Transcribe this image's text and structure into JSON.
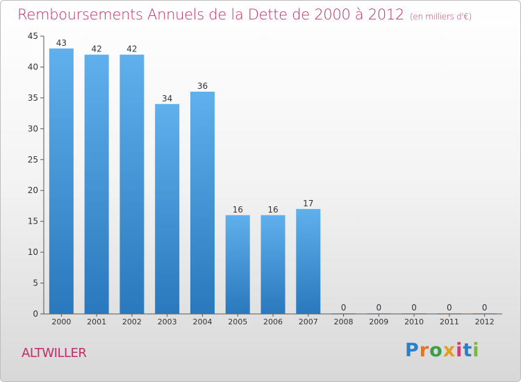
{
  "header": {
    "title": "Remboursements Annuels de la Dette de 2000 à 2012",
    "unit": "(en milliers d'€)"
  },
  "footer": {
    "commune": "ALTWILLER",
    "logo_letters": [
      "P",
      "r",
      "o",
      "x",
      "i",
      "t",
      "i"
    ]
  },
  "colors": {
    "title": "#c22c66",
    "bar_top": "#5fb0ec",
    "bar_bottom": "#2a78bd",
    "axis": "#555555"
  },
  "chart_data": {
    "type": "bar",
    "title": "Remboursements Annuels de la Dette de 2000 à 2012",
    "categories": [
      "2000",
      "2001",
      "2002",
      "2003",
      "2004",
      "2005",
      "2006",
      "2007",
      "2008",
      "2009",
      "2010",
      "2011",
      "2012"
    ],
    "values": [
      43,
      42,
      42,
      34,
      36,
      16,
      16,
      17,
      0,
      0,
      0,
      0,
      0
    ],
    "data_labels": [
      "43",
      "42",
      "42",
      "34",
      "36",
      "16",
      "16",
      "17",
      "0",
      "0",
      "0",
      "0",
      "0"
    ],
    "xlabel": "",
    "ylabel": "",
    "ylim": [
      0,
      45
    ],
    "yticks": [
      0,
      5,
      10,
      15,
      20,
      25,
      30,
      35,
      40,
      45
    ],
    "ytick_labels": [
      "0",
      "5",
      "10",
      "15",
      "20",
      "25",
      "30",
      "35",
      "40",
      "45"
    ],
    "grid": false,
    "legend": "none"
  }
}
